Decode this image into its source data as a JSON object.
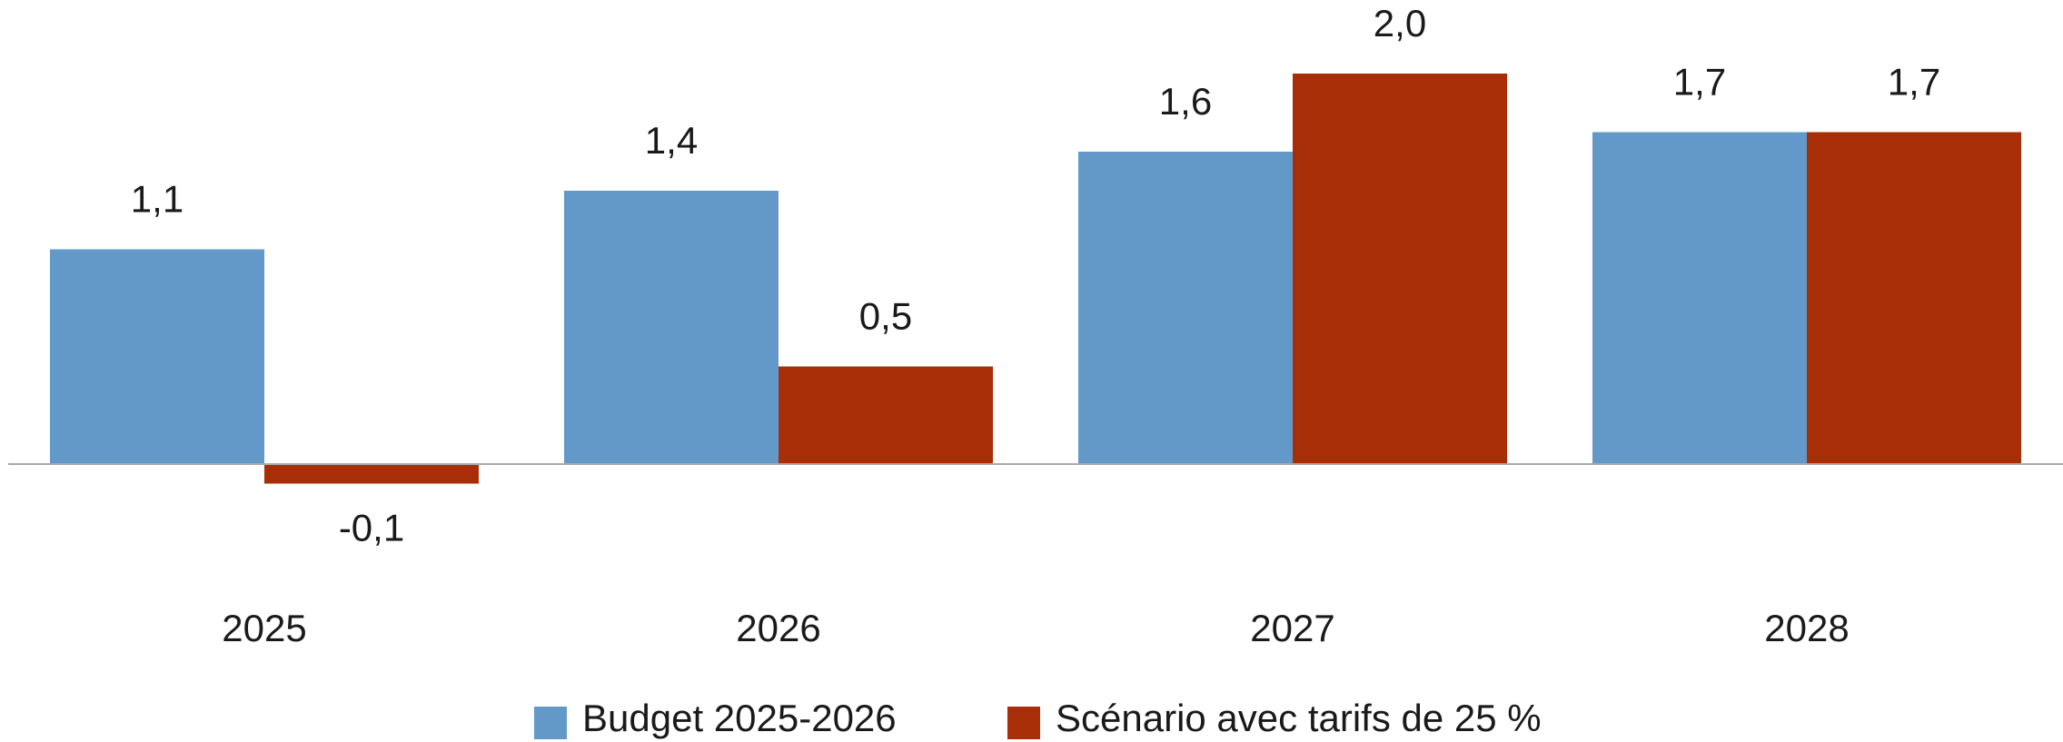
{
  "chart_data": {
    "type": "bar",
    "categories": [
      "2025",
      "2026",
      "2027",
      "2028"
    ],
    "series": [
      {
        "name": "Budget 2025-2026",
        "color": "#6399c8",
        "values": [
          1.1,
          1.4,
          1.6,
          1.7
        ],
        "value_labels": [
          "1,1",
          "1,4",
          "1,6",
          "1,7"
        ]
      },
      {
        "name": "Scénario avec tarifs de 25 %",
        "color": "#a82e08",
        "values": [
          -0.1,
          0.5,
          2.0,
          1.7
        ],
        "value_labels": [
          "-0,1",
          "0,5",
          "2,0",
          "1,7"
        ]
      }
    ],
    "legend": "bottom"
  }
}
